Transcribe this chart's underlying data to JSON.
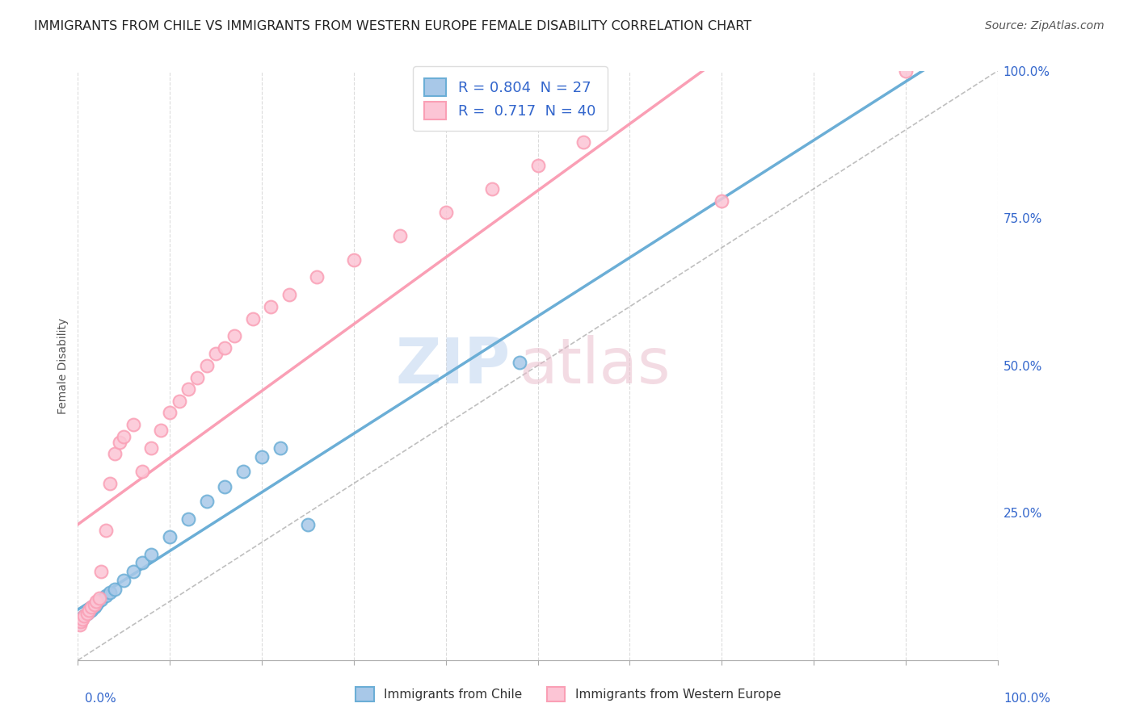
{
  "title": "IMMIGRANTS FROM CHILE VS IMMIGRANTS FROM WESTERN EUROPE FEMALE DISABILITY CORRELATION CHART",
  "source": "Source: ZipAtlas.com",
  "ylabel": "Female Disability",
  "r_chile": 0.804,
  "n_chile": 27,
  "r_western": 0.717,
  "n_western": 40,
  "watermark_zip": "ZIP",
  "watermark_atlas": "atlas",
  "blue_color": "#6baed6",
  "blue_fill": "#a8c8e8",
  "pink_color": "#fa9fb5",
  "pink_fill": "#fcc5d5",
  "text_color": "#3366cc",
  "title_color": "#222222",
  "grid_color": "#cccccc",
  "tick_color": "#3366cc",
  "chile_x": [
    0.2,
    0.3,
    0.5,
    0.7,
    1.0,
    1.2,
    1.5,
    1.8,
    2.0,
    2.2,
    2.5,
    3.0,
    3.5,
    4.0,
    5.0,
    6.0,
    7.0,
    8.0,
    10.0,
    12.0,
    14.0,
    16.0,
    18.0,
    20.0,
    22.0,
    25.0,
    48.0
  ],
  "chile_y": [
    6.5,
    7.0,
    7.2,
    7.5,
    8.0,
    8.2,
    8.5,
    9.0,
    9.5,
    9.8,
    10.2,
    11.0,
    11.5,
    12.0,
    13.5,
    15.0,
    16.5,
    18.0,
    21.0,
    24.0,
    27.0,
    29.5,
    32.0,
    34.5,
    36.0,
    23.0,
    50.5
  ],
  "western_x": [
    0.2,
    0.3,
    0.5,
    0.7,
    1.0,
    1.2,
    1.5,
    1.8,
    2.0,
    2.3,
    2.5,
    3.0,
    3.5,
    4.0,
    4.5,
    5.0,
    6.0,
    7.0,
    8.0,
    9.0,
    10.0,
    11.0,
    12.0,
    13.0,
    14.0,
    15.0,
    16.0,
    17.0,
    19.0,
    21.0,
    23.0,
    26.0,
    30.0,
    35.0,
    40.0,
    45.0,
    50.0,
    55.0,
    70.0,
    90.0
  ],
  "western_y": [
    6.0,
    6.5,
    7.0,
    7.5,
    8.0,
    8.5,
    9.0,
    9.5,
    10.0,
    10.5,
    15.0,
    22.0,
    30.0,
    35.0,
    37.0,
    38.0,
    40.0,
    32.0,
    36.0,
    39.0,
    42.0,
    44.0,
    46.0,
    48.0,
    50.0,
    52.0,
    53.0,
    55.0,
    58.0,
    60.0,
    62.0,
    65.0,
    68.0,
    72.0,
    76.0,
    80.0,
    84.0,
    88.0,
    78.0,
    100.0
  ]
}
